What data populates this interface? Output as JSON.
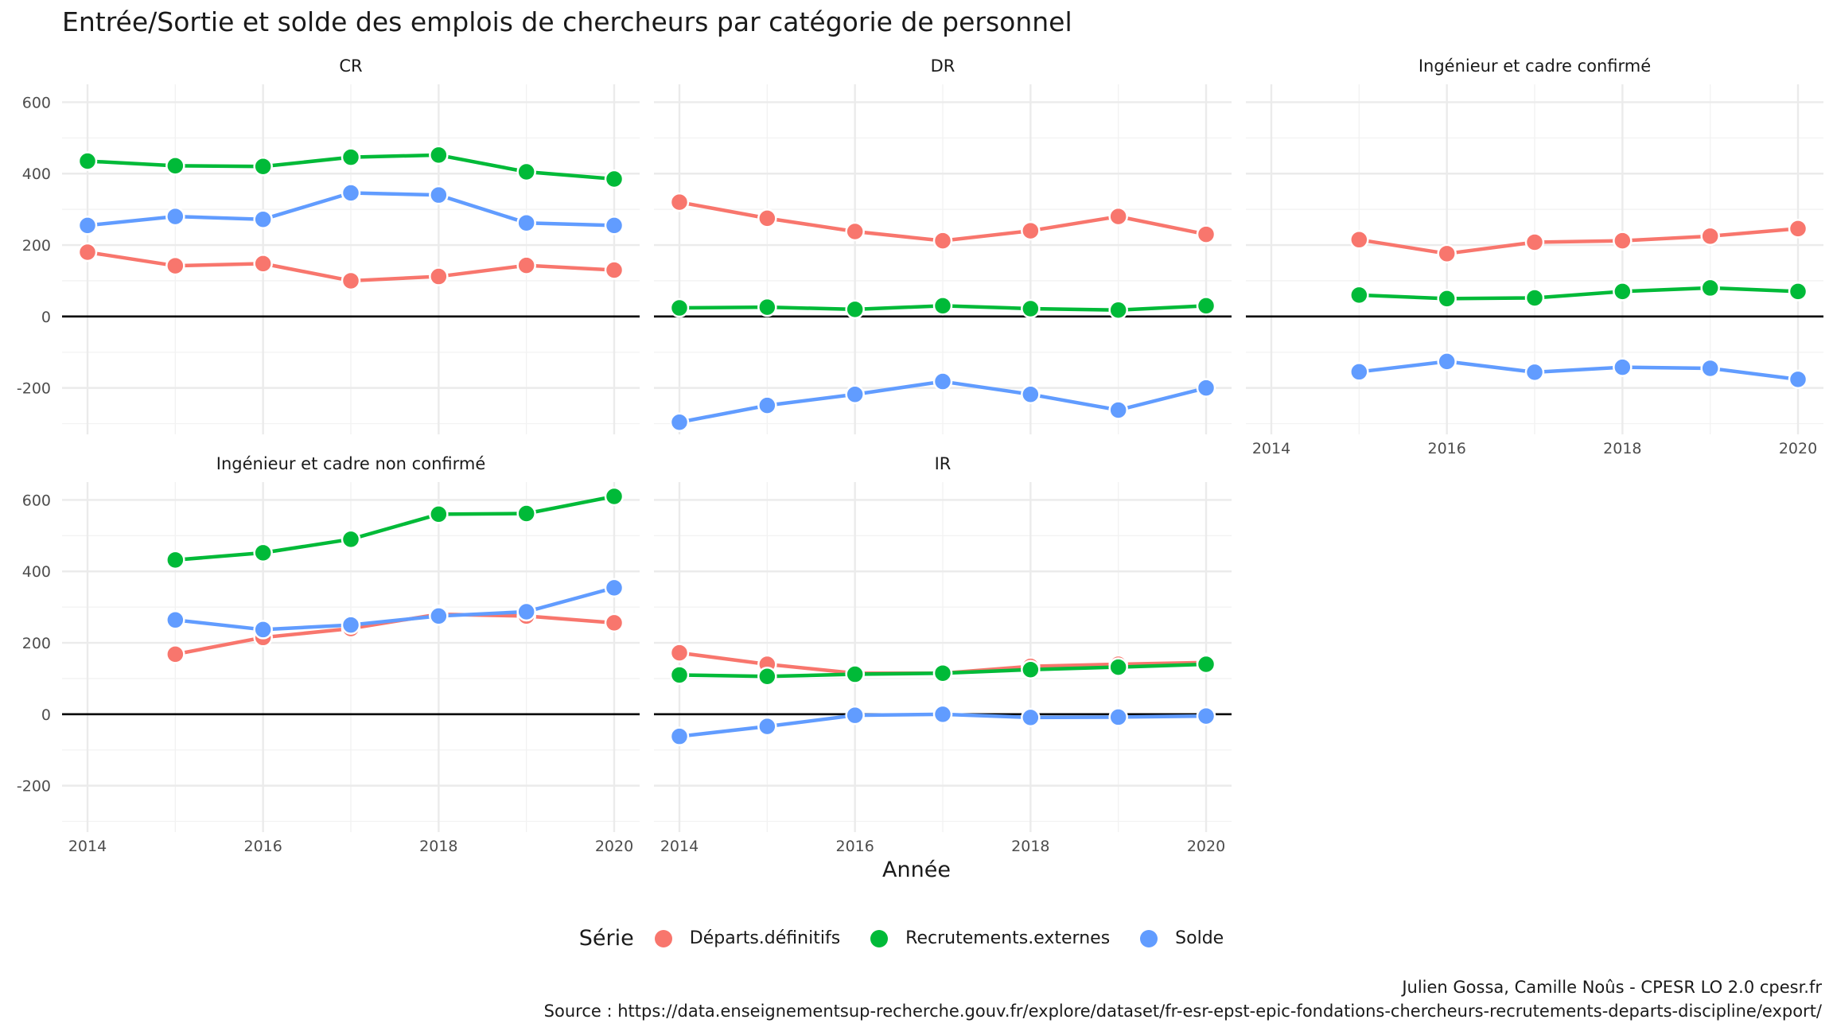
{
  "title": "Entrée/Sortie et solde des emplois de chercheurs par catégorie de personnel",
  "caption": {
    "line1": "Julien Gossa, Camille Noûs - CPESR LO 2.0 cpesr.fr",
    "line2": "Source : https://data.enseignementsup-recherche.gouv.fr/explore/dataset/fr-esr-epst-epic-fondations-chercheurs-recrutements-departs-discipline/export/"
  },
  "legend": {
    "title": "Série",
    "items": [
      {
        "label": "Départs.définitifs",
        "color": "#F8766D"
      },
      {
        "label": "Recrutements.externes",
        "color": "#00BA38"
      },
      {
        "label": "Solde",
        "color": "#619CFF"
      }
    ]
  },
  "chart_data": {
    "type": "line",
    "xlabel": "Année",
    "ylabel": "",
    "xlim": [
      2014,
      2020
    ],
    "ylim": [
      -330,
      650
    ],
    "x_ticks": [
      2014,
      2016,
      2018,
      2020
    ],
    "y_ticks": [
      -200,
      0,
      200,
      400,
      600
    ],
    "grid": true,
    "zero_line": 0,
    "legend_position": "bottom",
    "panels": [
      {
        "title": "CR",
        "series": [
          {
            "name": "Départs.définitifs",
            "x": [
              2014,
              2015,
              2016,
              2017,
              2018,
              2019,
              2020
            ],
            "values": [
              180,
              142,
              148,
              100,
              112,
              143,
              130
            ]
          },
          {
            "name": "Recrutements.externes",
            "x": [
              2014,
              2015,
              2016,
              2017,
              2018,
              2019,
              2020
            ],
            "values": [
              435,
              422,
              420,
              446,
              452,
              405,
              385
            ]
          },
          {
            "name": "Solde",
            "x": [
              2014,
              2015,
              2016,
              2017,
              2018,
              2019,
              2020
            ],
            "values": [
              255,
              280,
              272,
              346,
              340,
              262,
              255
            ]
          }
        ]
      },
      {
        "title": "DR",
        "series": [
          {
            "name": "Départs.définitifs",
            "x": [
              2014,
              2015,
              2016,
              2017,
              2018,
              2019,
              2020
            ],
            "values": [
              320,
              275,
              238,
              212,
              240,
              280,
              230
            ]
          },
          {
            "name": "Recrutements.externes",
            "x": [
              2014,
              2015,
              2016,
              2017,
              2018,
              2019,
              2020
            ],
            "values": [
              24,
              26,
              20,
              30,
              22,
              18,
              30
            ]
          },
          {
            "name": "Solde",
            "x": [
              2014,
              2015,
              2016,
              2017,
              2018,
              2019,
              2020
            ],
            "values": [
              -296,
              -249,
              -218,
              -182,
              -218,
              -262,
              -200
            ]
          }
        ]
      },
      {
        "title": "Ingénieur et cadre confirmé",
        "series": [
          {
            "name": "Départs.définitifs",
            "x": [
              2015,
              2016,
              2017,
              2018,
              2019,
              2020
            ],
            "values": [
              215,
              176,
              208,
              212,
              225,
              246
            ]
          },
          {
            "name": "Recrutements.externes",
            "x": [
              2015,
              2016,
              2017,
              2018,
              2019,
              2020
            ],
            "values": [
              60,
              50,
              52,
              70,
              80,
              70
            ]
          },
          {
            "name": "Solde",
            "x": [
              2015,
              2016,
              2017,
              2018,
              2019,
              2020
            ],
            "values": [
              -155,
              -126,
              -156,
              -142,
              -145,
              -176
            ]
          }
        ]
      },
      {
        "title": "Ingénieur et cadre non confirmé",
        "series": [
          {
            "name": "Départs.définitifs",
            "x": [
              2015,
              2016,
              2017,
              2018,
              2019,
              2020
            ],
            "values": [
              168,
              215,
              240,
              280,
              275,
              256
            ]
          },
          {
            "name": "Recrutements.externes",
            "x": [
              2015,
              2016,
              2017,
              2018,
              2019,
              2020
            ],
            "values": [
              432,
              452,
              490,
              560,
              562,
              610
            ]
          },
          {
            "name": "Solde",
            "x": [
              2015,
              2016,
              2017,
              2018,
              2019,
              2020
            ],
            "values": [
              264,
              237,
              250,
              275,
              287,
              354
            ]
          }
        ]
      },
      {
        "title": "IR",
        "series": [
          {
            "name": "Départs.définitifs",
            "x": [
              2014,
              2015,
              2016,
              2017,
              2018,
              2019,
              2020
            ],
            "values": [
              172,
              140,
              115,
              115,
              134,
              140,
              145
            ]
          },
          {
            "name": "Recrutements.externes",
            "x": [
              2014,
              2015,
              2016,
              2017,
              2018,
              2019,
              2020
            ],
            "values": [
              110,
              106,
              112,
              115,
              125,
              132,
              140
            ]
          },
          {
            "name": "Solde",
            "x": [
              2014,
              2015,
              2016,
              2017,
              2018,
              2019,
              2020
            ],
            "values": [
              -62,
              -34,
              -3,
              0,
              -9,
              -8,
              -5
            ]
          }
        ]
      }
    ]
  }
}
